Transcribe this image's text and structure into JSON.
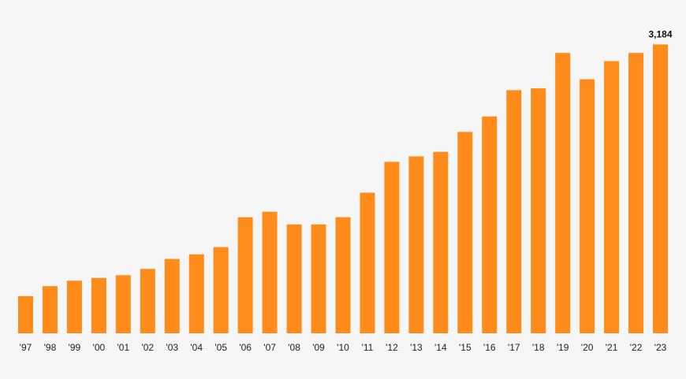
{
  "chart_data": {
    "type": "bar",
    "categories": [
      "'97",
      "'98",
      "'99",
      "'00",
      "'01",
      "'02",
      "'03",
      "'04",
      "'05",
      "'06",
      "'07",
      "'08",
      "'09",
      "'10",
      "'11",
      "'12",
      "'13",
      "'14",
      "'15",
      "'16",
      "'17",
      "'18",
      "'19",
      "'20",
      "'21",
      "'22",
      "'23"
    ],
    "values": [
      410,
      520,
      580,
      610,
      640,
      710,
      820,
      870,
      950,
      1280,
      1340,
      1200,
      1200,
      1280,
      1550,
      1890,
      1950,
      2000,
      2220,
      2390,
      2680,
      2700,
      3090,
      2800,
      3000,
      3090,
      3184
    ],
    "data_labels": [
      {
        "index": 26,
        "text": "3,184"
      }
    ],
    "ylim": [
      0,
      3500
    ],
    "grid": false,
    "legend": "none",
    "bar_color": "#ff8c1a",
    "background_color": "#f6f6f6"
  }
}
